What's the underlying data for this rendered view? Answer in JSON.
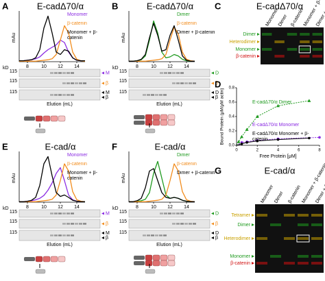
{
  "panels": [
    {
      "letter": "A",
      "title": "E-cadΔ70/α",
      "chart": {
        "type": "line",
        "ylabel": "mAu",
        "x": [
          7,
          7.5,
          8,
          8.5,
          9,
          9.5,
          10,
          10.5,
          11,
          11.5,
          12,
          12.5,
          13,
          13.5,
          14,
          14.5,
          15
        ],
        "xlim": [
          7,
          15
        ],
        "ylim": [
          0,
          100
        ],
        "xticks": [
          8,
          10,
          12,
          14
        ],
        "series": [
          {
            "name": "Monomer",
            "color": "#8a2be2",
            "values": [
              2,
              2,
              3,
              4,
              6,
              10,
              18,
              25,
              30,
              35,
              45,
              40,
              20,
              8,
              3,
              2,
              2
            ]
          },
          {
            "name": "β-catenin",
            "color": "#f28c1c",
            "values": [
              1,
              1,
              1,
              1,
              1,
              2,
              3,
              4,
              6,
              15,
              45,
              75,
              60,
              20,
              5,
              2,
              1
            ]
          },
          {
            "name": "Monomer + β-catenin",
            "color": "#000000",
            "values": [
              2,
              2,
              3,
              4,
              8,
              25,
              70,
              95,
              60,
              20,
              15,
              25,
              22,
              8,
              3,
              2,
              2
            ]
          }
        ]
      },
      "gel": {
        "unit": "kD",
        "markers": [
          "115",
          "115",
          "115"
        ],
        "labels": [
          [
            "M"
          ],
          [
            "β"
          ],
          [
            "M",
            "β"
          ]
        ]
      },
      "xlabel": "Elution (mL)"
    },
    {
      "letter": "B",
      "title": "E-cadΔ70/α",
      "chart": {
        "type": "line",
        "ylabel": "mAu",
        "x": [
          7,
          7.5,
          8,
          8.5,
          9,
          9.5,
          10,
          10.5,
          11,
          11.5,
          12,
          12.5,
          13,
          13.5,
          14,
          14.5,
          15
        ],
        "xlim": [
          7,
          15
        ],
        "ylim": [
          0,
          100
        ],
        "xticks": [
          8,
          10,
          12,
          14
        ],
        "series": [
          {
            "name": "Dimer",
            "color": "#1f9a1f",
            "values": [
              1,
              1,
              2,
              4,
              12,
              45,
              85,
              60,
              20,
              8,
              10,
              15,
              12,
              5,
              2,
              1,
              1
            ]
          },
          {
            "name": "β-catenin",
            "color": "#f28c1c",
            "values": [
              1,
              1,
              1,
              1,
              1,
              2,
              3,
              4,
              6,
              15,
              45,
              72,
              58,
              20,
              5,
              2,
              1
            ]
          },
          {
            "name": "Dimer + β-catenin",
            "color": "#000000",
            "values": [
              1,
              1,
              2,
              5,
              15,
              50,
              80,
              55,
              22,
              25,
              55,
              75,
              45,
              12,
              3,
              1,
              1
            ]
          }
        ]
      },
      "gel": {
        "unit": "kD",
        "markers": [
          "115",
          "115",
          "115"
        ],
        "labels": [
          [
            "D"
          ],
          [
            "β"
          ],
          [
            "D",
            "β"
          ]
        ]
      },
      "xlabel": "Elution (mL)"
    },
    {
      "letter": "E",
      "title": "E-cad/α",
      "chart": {
        "type": "line",
        "ylabel": "mAu",
        "x": [
          7,
          7.5,
          8,
          8.5,
          9,
          9.5,
          10,
          10.5,
          11,
          11.5,
          12,
          12.5,
          13,
          13.5,
          14,
          14.5,
          15
        ],
        "xlim": [
          7,
          15
        ],
        "ylim": [
          0,
          100
        ],
        "xticks": [
          8,
          10,
          12,
          14
        ],
        "series": [
          {
            "name": "Monomer",
            "color": "#8a2be2",
            "values": [
              1,
              1,
              2,
              3,
              5,
              8,
              14,
              25,
              40,
              60,
              72,
              45,
              15,
              5,
              2,
              1,
              1
            ]
          },
          {
            "name": "β-catenin",
            "color": "#f28c1c",
            "values": [
              1,
              1,
              1,
              1,
              1,
              2,
              3,
              4,
              6,
              15,
              45,
              80,
              65,
              22,
              5,
              2,
              1
            ]
          },
          {
            "name": "Monomer + β-catenin",
            "color": "#000000",
            "values": [
              1,
              1,
              2,
              4,
              10,
              35,
              80,
              95,
              55,
              20,
              12,
              15,
              10,
              4,
              2,
              1,
              1
            ]
          }
        ]
      },
      "gel": {
        "unit": "kD",
        "markers": [
          "115",
          "115",
          "115"
        ],
        "labels": [
          [
            "M"
          ],
          [
            "β"
          ],
          [
            "M",
            "β"
          ]
        ]
      },
      "xlabel": "Elution (mL)"
    },
    {
      "letter": "F",
      "title": "E-cad/α",
      "chart": {
        "type": "line",
        "ylabel": "mAu",
        "x": [
          7,
          7.5,
          8,
          8.5,
          9,
          9.5,
          10,
          10.5,
          11,
          11.5,
          12,
          12.5,
          13,
          13.5,
          14,
          14.5,
          15
        ],
        "xlim": [
          7,
          15
        ],
        "ylim": [
          0,
          100
        ],
        "xticks": [
          8,
          10,
          12,
          14
        ],
        "series": [
          {
            "name": "Dimer",
            "color": "#1f9a1f",
            "values": [
              1,
              1,
              2,
              3,
              6,
              20,
              60,
              85,
              50,
              15,
              8,
              10,
              8,
              4,
              2,
              1,
              1
            ]
          },
          {
            "name": "β-catenin",
            "color": "#f28c1c",
            "values": [
              1,
              1,
              1,
              1,
              1,
              2,
              3,
              4,
              6,
              15,
              45,
              80,
              65,
              22,
              5,
              2,
              1
            ]
          },
          {
            "name": "Dimer + β-catenin",
            "color": "#000000",
            "values": [
              1,
              1,
              3,
              8,
              30,
              65,
              70,
              45,
              20,
              10,
              8,
              10,
              8,
              4,
              2,
              1,
              1
            ]
          }
        ]
      },
      "gel": {
        "unit": "kD",
        "markers": [
          "115",
          "115",
          "115"
        ],
        "labels": [
          [
            "D"
          ],
          [
            "β"
          ],
          [
            "D",
            "β"
          ]
        ]
      },
      "xlabel": "Elution (mL)"
    }
  ],
  "gel_c": {
    "letter": "C",
    "title": "E-cadΔ70/α",
    "lanes": [
      "Monomer",
      "Dimer",
      "β-catenin",
      "Monomer + β-catenin",
      "Dimer + β-catenin"
    ],
    "bands": [
      {
        "name": "Dimer",
        "color": "#1f9a1f"
      },
      {
        "name": "Heterodimer",
        "color": "#c9a100"
      },
      {
        "name": "Monomer",
        "color": "#1f9a1f"
      },
      {
        "name": "β-catenin",
        "color": "#d01010"
      }
    ]
  },
  "binding": {
    "letter": "D",
    "chart": {
      "type": "scatter",
      "xlabel": "Free Protein [μM]",
      "ylabel": "Bound Protein (μM/μM actin)",
      "xlim": [
        0,
        8
      ],
      "ylim": [
        0,
        0.8
      ],
      "xticks": [
        0,
        2,
        4,
        6,
        8
      ],
      "yticks": [
        {
          "value": 0,
          "label": "0.0"
        },
        0.2,
        0.4,
        0.6,
        0.8
      ],
      "series": [
        {
          "name": "E-cadΔ70/α Dimer",
          "color": "#1f9a1f",
          "x": [
            0.2,
            0.5,
            1,
            2,
            4,
            7
          ],
          "values": [
            0.05,
            0.12,
            0.22,
            0.4,
            0.55,
            0.62
          ]
        },
        {
          "name": "E-cadΔ70/α Monomer",
          "color": "#8a2be2",
          "x": [
            0.5,
            1,
            2,
            4,
            8
          ],
          "values": [
            0.04,
            0.05,
            0.07,
            0.09,
            0.11
          ]
        },
        {
          "name": "E-cadΔ70/α Monomer + β-catenin",
          "color": "#000000",
          "x": [
            0.5,
            1,
            2,
            4,
            7
          ],
          "values": [
            0.02,
            0.04,
            0.06,
            0.08,
            0.1
          ]
        }
      ]
    }
  },
  "gel_g": {
    "letter": "G",
    "title": "E-cad/α",
    "lanes": [
      "Monomer",
      "Dimer",
      "β-catenin",
      "Monomer + β-catenin",
      "Dimer + β-catenin"
    ],
    "bands": [
      {
        "name": "Tetramer",
        "color": "#c9a100"
      },
      {
        "name": "Dimer",
        "color": "#1f9a1f"
      },
      {
        "name": "Heterodimer",
        "color": "#c9a100"
      },
      {
        "name": "Monomer",
        "color": "#1f9a1f"
      },
      {
        "name": "β-catenin",
        "color": "#d01010"
      }
    ]
  }
}
